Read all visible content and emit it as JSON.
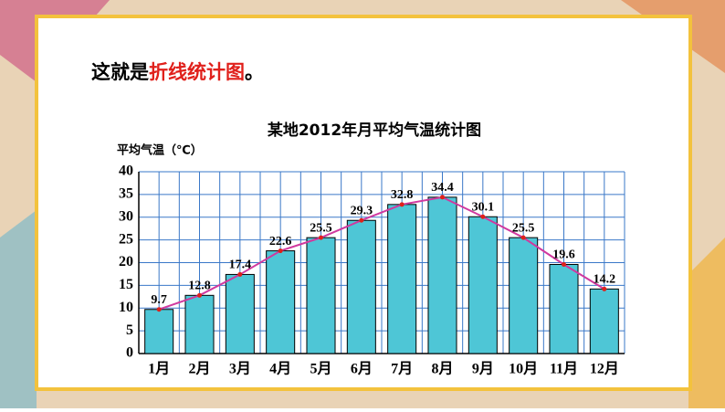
{
  "heading": {
    "parts": [
      "这就是",
      "折线统计图",
      "。"
    ]
  },
  "chart_data": {
    "type": "bar",
    "title": "某地2012年月平均气温统计图",
    "y_label": "平均气温（℃）",
    "categories": [
      "1月",
      "2月",
      "3月",
      "4月",
      "5月",
      "6月",
      "7月",
      "8月",
      "9月",
      "10月",
      "11月",
      "12月"
    ],
    "values": [
      9.7,
      12.8,
      17.4,
      22.6,
      25.5,
      29.3,
      32.8,
      34.4,
      30.1,
      25.5,
      19.6,
      14.2
    ],
    "color": "#4ec6d6",
    "line_color": "#d0399f",
    "point_color": "#e0201b",
    "ylim": [
      0,
      40
    ],
    "yticks": [
      0,
      5,
      10,
      15,
      20,
      25,
      30,
      35,
      40
    ],
    "grid": true
  }
}
